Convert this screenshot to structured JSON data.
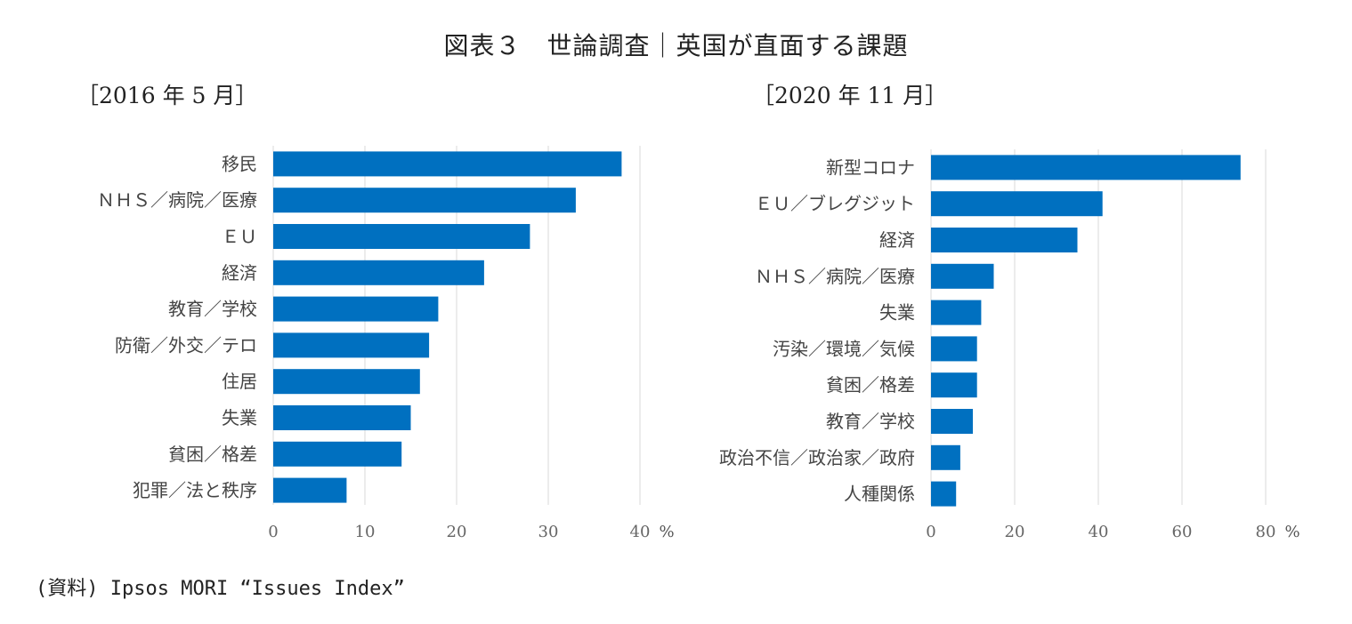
{
  "header": {
    "title": "図表３　世論調査｜英国が直面する課題"
  },
  "source": "(資料) Ipsos MORI “Issues Index”",
  "bar_color": "#0070c0",
  "grid_color": "#d9d9d9",
  "chart_data": [
    {
      "type": "bar",
      "orientation": "horizontal",
      "subtitle": "［2016 年 5 月］",
      "categories": [
        "移民",
        "ＮＨＳ／病院／医療",
        "ＥＵ",
        "経済",
        "教育／学校",
        "防衛／外交／テロ",
        "住居",
        "失業",
        "貧困／格差",
        "犯罪／法と秩序"
      ],
      "values": [
        38,
        33,
        28,
        23,
        18,
        17,
        16,
        15,
        14,
        8
      ],
      "xlim": [
        0,
        40
      ],
      "ticks": [
        0,
        10,
        20,
        30,
        40
      ],
      "unit": "%",
      "grid": true
    },
    {
      "type": "bar",
      "orientation": "horizontal",
      "subtitle": "［2020 年 11 月］",
      "categories": [
        "新型コロナ",
        "ＥＵ／ブレグジット",
        "経済",
        "ＮＨＳ／病院／医療",
        "失業",
        "汚染／環境／気候",
        "貧困／格差",
        "教育／学校",
        "政治不信／政治家／政府",
        "人種関係"
      ],
      "values": [
        74,
        41,
        35,
        15,
        12,
        11,
        11,
        10,
        7,
        6
      ],
      "xlim": [
        0,
        80
      ],
      "ticks": [
        0,
        20,
        40,
        60,
        80
      ],
      "unit": "%",
      "grid": true
    }
  ]
}
